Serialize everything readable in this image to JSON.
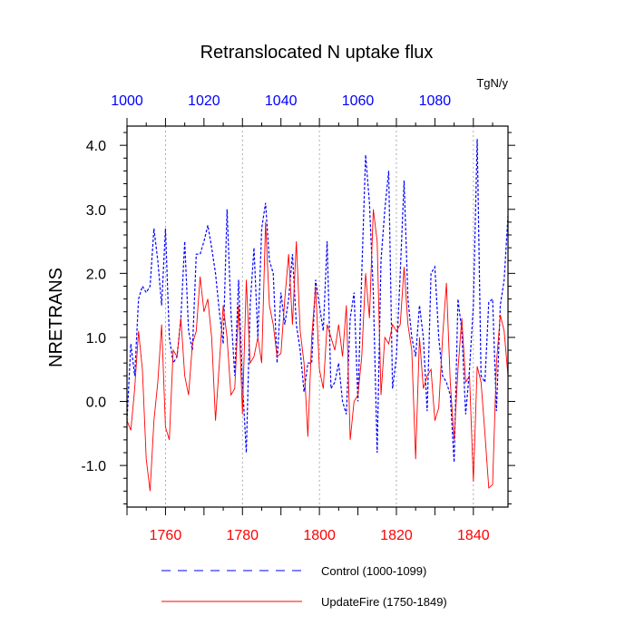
{
  "chart_data": {
    "type": "line",
    "title": "Retranslocated N uptake flux",
    "units": "TgN/y",
    "ylabel": "NRETRANS",
    "ylim": [
      -1.65,
      4.3
    ],
    "yticks": [
      -1.0,
      0.0,
      1.0,
      2.0,
      3.0,
      4.0
    ],
    "ytick_labels": [
      "-1.0",
      "0.0",
      "1.0",
      "2.0",
      "3.0",
      "4.0"
    ],
    "top_axis": {
      "xlim": [
        1000,
        1099
      ],
      "ticks": [
        1000,
        1020,
        1040,
        1060,
        1080
      ],
      "tick_labels": [
        "1000",
        "1020",
        "1040",
        "1060",
        "1080"
      ],
      "color": "#0000ff"
    },
    "bottom_axis": {
      "xlim": [
        1750,
        1849
      ],
      "ticks": [
        1760,
        1780,
        1800,
        1820,
        1840
      ],
      "tick_labels": [
        "1760",
        "1780",
        "1800",
        "1820",
        "1840"
      ],
      "color": "#ff0000"
    },
    "grid": "dotted vertical lines at major ticks",
    "series": [
      {
        "name": "Control (1000-1099)",
        "axis": "top",
        "color": "#0000ff",
        "style": "dashed",
        "x_start": 1000,
        "values": [
          -0.3,
          0.9,
          0.4,
          1.6,
          1.8,
          1.7,
          1.8,
          2.7,
          2.2,
          1.5,
          2.7,
          1.0,
          0.6,
          0.7,
          1.3,
          2.5,
          1.1,
          0.8,
          2.3,
          2.3,
          2.5,
          2.75,
          2.4,
          2.0,
          1.4,
          0.9,
          3.0,
          1.4,
          0.4,
          1.9,
          0.3,
          -0.8,
          1.5,
          2.4,
          1.0,
          2.7,
          3.1,
          2.2,
          2.0,
          0.6,
          1.7,
          1.2,
          1.6,
          2.3,
          1.2,
          0.8,
          0.15,
          0.6,
          0.6,
          1.9,
          1.5,
          1.1,
          2.5,
          0.2,
          0.3,
          0.6,
          0.0,
          -0.2,
          1.3,
          1.7,
          0.0,
          2.0,
          3.85,
          3.1,
          1.7,
          -0.8,
          2.2,
          3.0,
          3.6,
          0.2,
          0.7,
          2.0,
          3.45,
          1.6,
          1.0,
          0.7,
          1.5,
          1.0,
          -0.15,
          2.0,
          2.1,
          1.0,
          0.4,
          0.3,
          0.1,
          -0.95,
          1.6,
          1.1,
          -0.2,
          0.5,
          1.5,
          4.1,
          0.4,
          0.3,
          1.55,
          1.6,
          -0.15,
          1.5,
          1.9,
          2.9
        ]
      },
      {
        "name": "UpdateFire (1750-1849)",
        "axis": "bottom",
        "color": "#ff0000",
        "style": "solid",
        "x_start": 1750,
        "values": [
          -0.3,
          -0.45,
          0.2,
          1.1,
          0.5,
          -0.9,
          -1.4,
          -0.3,
          0.3,
          1.2,
          -0.4,
          -0.6,
          0.8,
          0.7,
          1.3,
          0.4,
          0.1,
          0.9,
          1.1,
          1.95,
          1.4,
          1.6,
          1.0,
          -0.3,
          0.6,
          1.5,
          1.0,
          0.1,
          0.2,
          1.5,
          -0.2,
          1.9,
          0.6,
          0.7,
          1.0,
          0.6,
          2.8,
          1.5,
          1.2,
          0.7,
          0.75,
          1.6,
          2.3,
          1.2,
          2.5,
          1.1,
          0.6,
          -0.55,
          1.0,
          1.8,
          0.5,
          0.2,
          1.2,
          1.0,
          0.8,
          1.2,
          0.7,
          1.5,
          -0.6,
          0.0,
          0.1,
          0.7,
          2.0,
          1.3,
          3.0,
          2.5,
          0.1,
          1.0,
          0.9,
          1.2,
          1.1,
          1.2,
          2.1,
          1.2,
          0.8,
          -0.9,
          1.0,
          0.2,
          0.4,
          0.5,
          -0.3,
          -0.1,
          1.0,
          1.85,
          0.3,
          -0.6,
          0.5,
          1.3,
          0.3,
          0.4,
          -1.25,
          0.55,
          0.3,
          -0.5,
          -1.35,
          -1.3,
          0.6,
          1.35,
          1.1,
          0.4
        ]
      }
    ],
    "legend_position": "bottom"
  }
}
